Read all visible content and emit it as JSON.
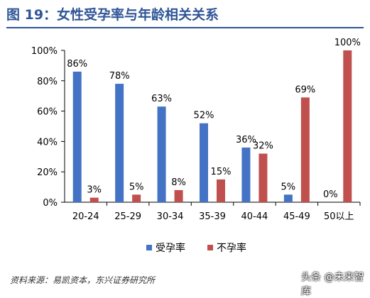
{
  "title": "图 19：女性受孕率与年龄相关关系",
  "source": "资料来源：易凯资本，东兴证券研究所",
  "watermark": "头条 @未来智库",
  "colors": {
    "title": "#2f5597",
    "series1": "#4472c4",
    "series2": "#c0504d",
    "axis": "#000000"
  },
  "chart_data": {
    "type": "bar",
    "categories": [
      "20-24",
      "25-29",
      "30-34",
      "35-39",
      "40-44",
      "45-49",
      "50以上"
    ],
    "series": [
      {
        "name": "受孕率",
        "values": [
          86,
          78,
          63,
          52,
          36,
          5,
          0
        ],
        "labels": [
          "86%",
          "78%",
          "63%",
          "52%",
          "36%",
          "5%",
          "0%"
        ]
      },
      {
        "name": "不孕率",
        "values": [
          3,
          5,
          8,
          15,
          32,
          69,
          100
        ],
        "labels": [
          "3%",
          "5%",
          "8%",
          "15%",
          "32%",
          "69%",
          "100%"
        ]
      }
    ],
    "yticks": [
      "0%",
      "20%",
      "40%",
      "60%",
      "80%",
      "100%"
    ],
    "ylim": [
      0,
      100
    ],
    "legend": "bottom-center",
    "grid": false
  }
}
